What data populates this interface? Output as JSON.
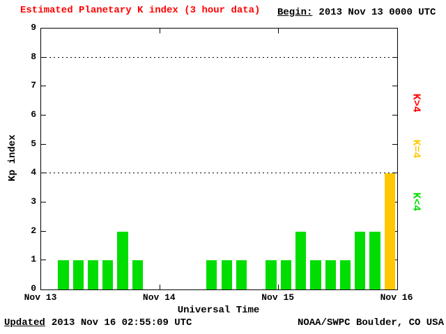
{
  "title": "Estimated Planetary K index (3 hour data)",
  "begin": {
    "label": "Begin:",
    "value": "2013 Nov 13 0000 UTC"
  },
  "footer": {
    "updated_label": "Updated",
    "updated_value": "2013 Nov 16 02:55:09 UTC",
    "credit": "NOAA/SWPC Boulder, CO USA"
  },
  "colors": {
    "green": "#00dd00",
    "yellow": "#ffc800",
    "red": "#ff0000",
    "title": "#ff0000",
    "axis": "#000000"
  },
  "legend": [
    {
      "label": "K>4",
      "color_key": "red"
    },
    {
      "label": "K=4",
      "color_key": "yellow"
    },
    {
      "label": "K<4",
      "color_key": "green"
    }
  ],
  "chart_data": {
    "type": "bar",
    "title": "Estimated Planetary K index (3 hour data)",
    "xlabel": "Universal Time",
    "ylabel": "Kp index",
    "ylim": [
      0,
      9
    ],
    "yticks": [
      0,
      1,
      2,
      3,
      4,
      5,
      6,
      7,
      8,
      9
    ],
    "dotted_gridlines_at": [
      4,
      8
    ],
    "x_tick_labels": [
      "Nov 13",
      "Nov 14",
      "Nov 15",
      "Nov 16"
    ],
    "hours_per_bar": 3,
    "grid": "dotted-horizontal",
    "legend_position": "right",
    "color_rule": {
      "k_lt_4": "green",
      "k_eq_4": "yellow",
      "k_gt_4": "red"
    },
    "days": [
      {
        "date": "Nov 13",
        "values": [
          0,
          1,
          1,
          1,
          1,
          2,
          1,
          0
        ]
      },
      {
        "date": "Nov 14",
        "values": [
          0,
          0,
          0,
          1,
          1,
          1,
          0,
          1
        ]
      },
      {
        "date": "Nov 15",
        "values": [
          1,
          2,
          1,
          1,
          1,
          2,
          2,
          4
        ]
      }
    ]
  }
}
